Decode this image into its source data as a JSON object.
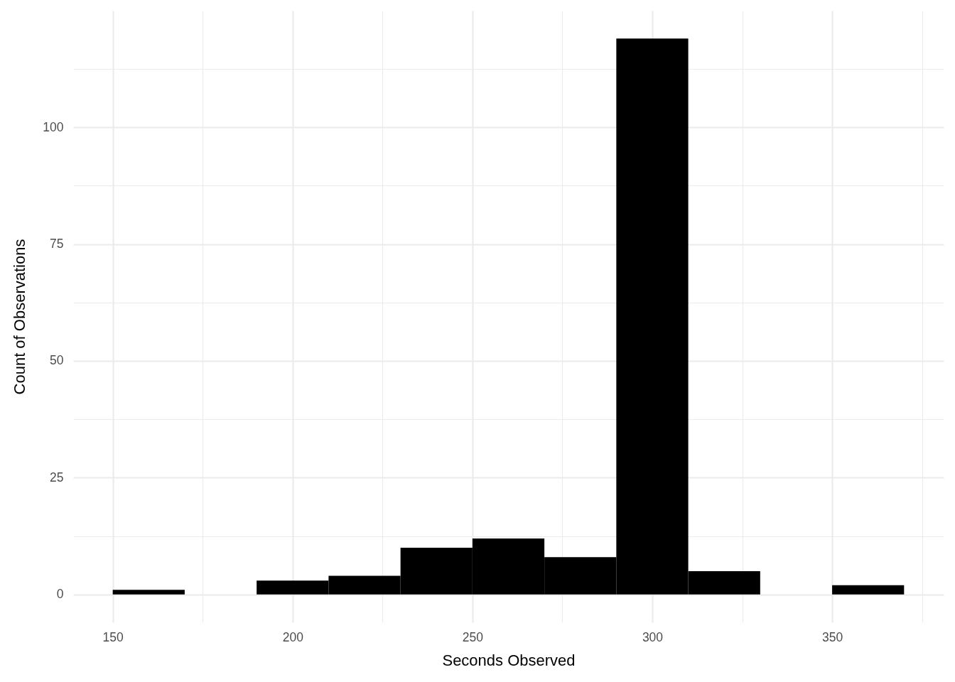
{
  "chart_data": {
    "type": "histogram",
    "xlabel": "Seconds Observed",
    "ylabel": "Count of Observations",
    "bins": [
      150,
      170,
      190,
      210,
      230,
      250,
      270,
      290,
      310,
      330,
      350,
      370
    ],
    "values": [
      1,
      0,
      3,
      4,
      10,
      12,
      8,
      119,
      5,
      0,
      2
    ],
    "color": "#000000",
    "xlim": [
      139,
      381
    ],
    "ylim": [
      -5.95,
      124.95
    ],
    "xticks": [
      150,
      {
        "value": 175,
        "label": null
      },
      200,
      {
        "value": 225,
        "label": null
      },
      250,
      {
        "value": 275,
        "label": null
      },
      300,
      {
        "value": 325,
        "label": null
      },
      350,
      {
        "value": 375,
        "label": null
      }
    ],
    "yticks": [
      0,
      {
        "value": 12.5,
        "label": null
      },
      25,
      {
        "value": 37.5,
        "label": null
      },
      50,
      {
        "value": 62.5,
        "label": null
      },
      75,
      {
        "value": 87.5,
        "label": null
      },
      100,
      {
        "value": 112.5,
        "label": null
      }
    ],
    "grid": true
  }
}
